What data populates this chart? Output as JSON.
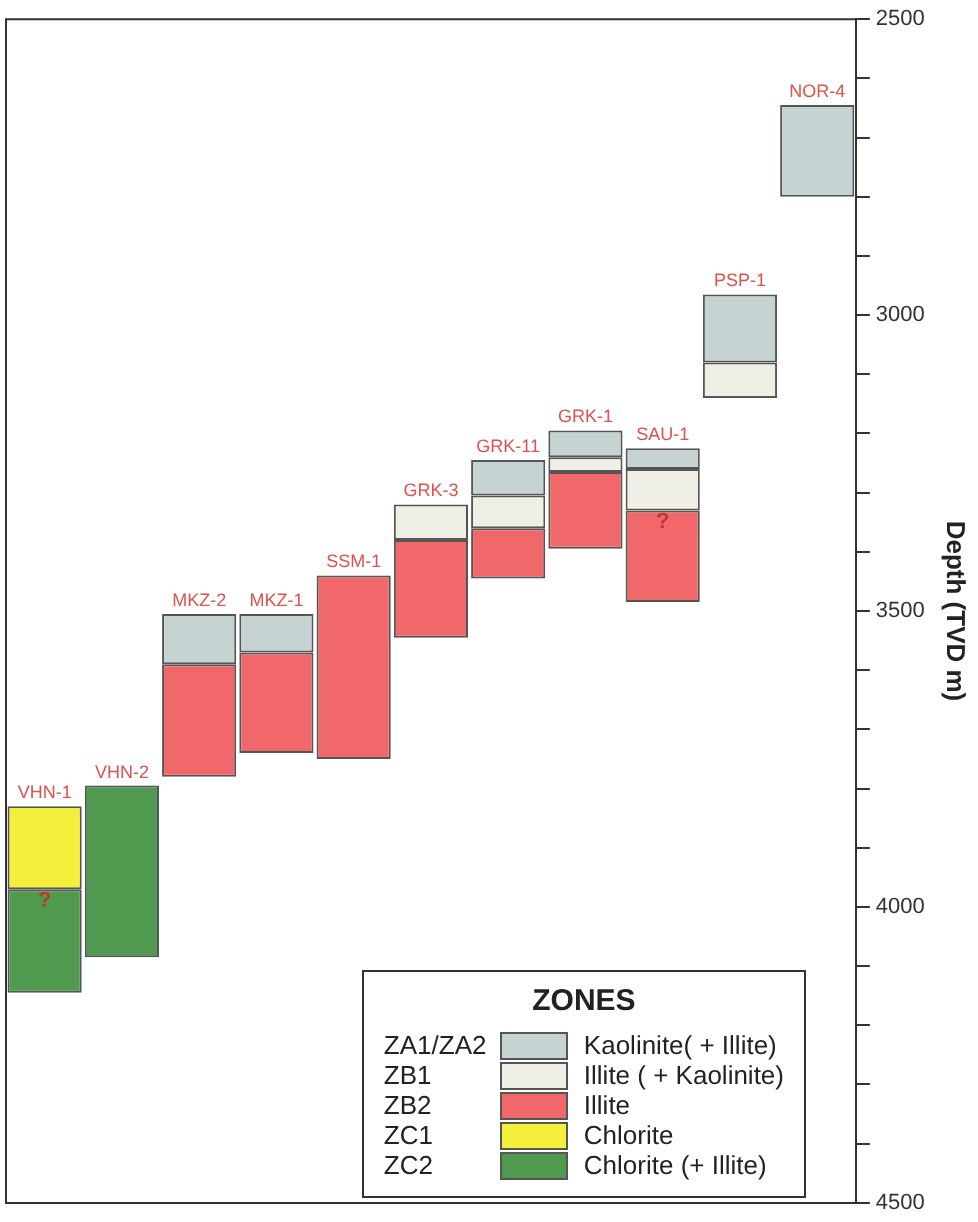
{
  "chart_data": {
    "type": "bar",
    "ylabel": "Depth (TVD m)",
    "legend_title": "ZONES",
    "categories": [
      "VHN-1",
      "VHN-2",
      "MKZ-2",
      "MKZ-1",
      "SSM-1",
      "GRK-3",
      "GRK-11",
      "GRK-1",
      "SAU-1",
      "PSP-1",
      "NOR-4"
    ],
    "series": [
      {
        "name": "Kaolinite( + Illite)",
        "color": "#c5d3d3",
        "base": [
          null,
          null,
          3505,
          3505,
          null,
          null,
          3245,
          3195,
          3225,
          2965,
          2645
        ],
        "values": [
          null,
          null,
          85,
          65,
          null,
          null,
          60,
          45,
          35,
          115,
          155
        ]
      },
      {
        "name": "Illite ( + Kaolinite)",
        "color": "#efefe6",
        "base": [
          null,
          null,
          null,
          null,
          null,
          3320,
          3305,
          3240,
          3260,
          3080,
          null
        ],
        "values": [
          null,
          null,
          null,
          null,
          null,
          60,
          55,
          25,
          70,
          60,
          null
        ]
      },
      {
        "name": "Illite",
        "color": "#f0686a",
        "base": [
          null,
          null,
          3590,
          3570,
          3440,
          3380,
          3360,
          3265,
          3330,
          null,
          null
        ],
        "values": [
          null,
          null,
          190,
          170,
          310,
          165,
          85,
          130,
          155,
          null,
          null
        ]
      },
      {
        "name": "Chlorite",
        "color": "#f4ef3a",
        "base": [
          3830,
          null,
          null,
          null,
          null,
          null,
          null,
          null,
          null,
          null,
          null
        ],
        "values": [
          140,
          null,
          null,
          null,
          null,
          null,
          null,
          null,
          null,
          null,
          null
        ]
      },
      {
        "name": "Chlorite (+ Illite)",
        "color": "#4f9a4f",
        "base": [
          3970,
          3795,
          null,
          null,
          null,
          null,
          null,
          null,
          null,
          null,
          null
        ],
        "values": [
          175,
          290,
          null,
          null,
          null,
          null,
          null,
          null,
          null,
          null,
          null
        ]
      }
    ],
    "ylim": [
      4500,
      2500
    ],
    "yticks": [
      2500,
      {
        "value": 2600,
        "label": null
      },
      {
        "value": 2700,
        "label": null
      },
      {
        "value": 2800,
        "label": null
      },
      {
        "value": 2900,
        "label": null
      },
      3000,
      {
        "value": 3100,
        "label": null
      },
      {
        "value": 3200,
        "label": null
      },
      {
        "value": 3300,
        "label": null
      },
      {
        "value": 3400,
        "label": null
      },
      3500,
      {
        "value": 3600,
        "label": null
      },
      {
        "value": 3700,
        "label": null
      },
      {
        "value": 3800,
        "label": null
      },
      {
        "value": 3900,
        "label": null
      },
      4000,
      {
        "value": 4100,
        "label": null
      },
      {
        "value": 4200,
        "label": null
      },
      {
        "value": 4300,
        "label": null
      },
      {
        "value": 4400,
        "label": null
      },
      4500
    ],
    "annotations": [
      "ZA1/ZA2",
      "ZB1",
      "ZB2",
      "ZC1",
      "ZC2",
      {
        "text": "?",
        "x": "VHN-1",
        "y": 3970
      },
      {
        "text": "?",
        "x": "SAU-1",
        "y": 3330
      }
    ],
    "grid": false,
    "legend": "bottom right",
    "tick_labels": "y"
  }
}
